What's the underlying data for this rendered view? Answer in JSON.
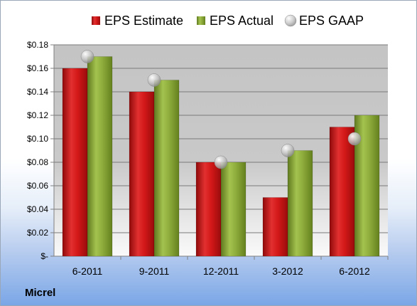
{
  "company_label": "Micrel",
  "chart_data": {
    "type": "bar",
    "categories": [
      "6-2011",
      "9-2011",
      "12-2011",
      "3-2012",
      "6-2012"
    ],
    "series": [
      {
        "name": "EPS Estimate",
        "kind": "bar",
        "color": "#d71a1a",
        "values": [
          0.16,
          0.14,
          0.08,
          0.05,
          0.11
        ]
      },
      {
        "name": "EPS Actual",
        "kind": "bar",
        "color": "#8fab3c",
        "values": [
          0.17,
          0.15,
          0.08,
          0.09,
          0.12
        ]
      },
      {
        "name": "EPS GAAP",
        "kind": "marker",
        "color": "#b8b8b8",
        "values": [
          0.17,
          0.15,
          0.08,
          0.09,
          0.1
        ]
      }
    ],
    "ylim": [
      0,
      0.18
    ],
    "yticks": [
      0,
      0.02,
      0.04,
      0.06,
      0.08,
      0.1,
      0.12,
      0.14,
      0.16,
      0.18
    ],
    "ytick_labels": [
      "$-",
      "$0.02",
      "$0.04",
      "$0.06",
      "$0.08",
      "$0.10",
      "$0.12",
      "$0.14",
      "$0.16",
      "$0.18"
    ],
    "grid": true,
    "legend_position": "top"
  }
}
